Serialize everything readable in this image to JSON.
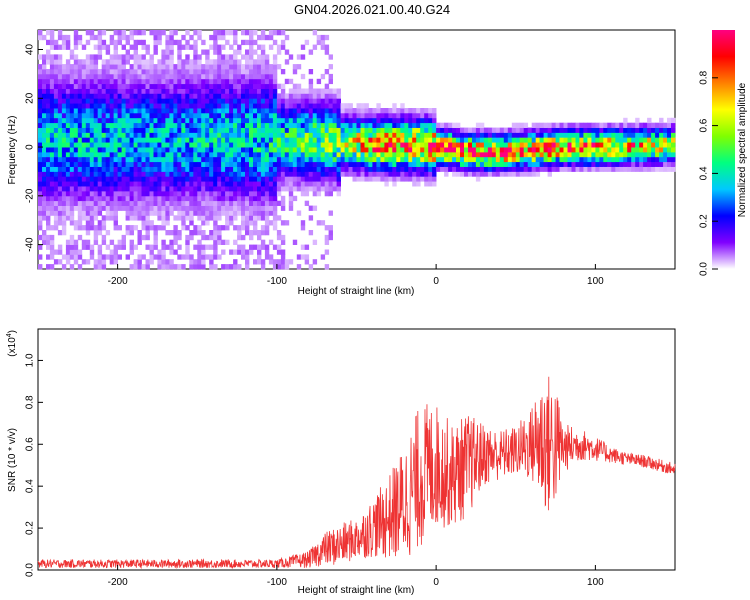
{
  "title": "GN04.2026.021.00.40.G24",
  "chart_data": [
    {
      "type": "heatmap",
      "xlabel": "Height of straight line (km)",
      "ylabel": "Frequency (Hz)",
      "xlim": [
        -250,
        150
      ],
      "ylim": [
        -50,
        48
      ],
      "x_ticks": [
        -200,
        -100,
        0,
        100
      ],
      "y_ticks": [
        -40,
        -20,
        0,
        20,
        40
      ],
      "colorbar": {
        "label": "Normalized spectral amplitude",
        "range": [
          0,
          1
        ],
        "ticks": [
          "0.0",
          "0.2",
          "0.4",
          "0.6",
          "0.8"
        ],
        "colors": [
          "#ffffff",
          "#8000ff",
          "#0000ff",
          "#00c8ff",
          "#00ff80",
          "#80ff00",
          "#ffff00",
          "#ff8000",
          "#ff0000",
          "#ff0080"
        ]
      },
      "ridge": {
        "x": [
          -250,
          -150,
          -100,
          -60,
          -40,
          -20,
          0,
          20,
          40,
          60,
          80,
          100,
          150
        ],
        "center_freq": [
          2,
          2,
          2,
          1,
          0,
          0,
          -1,
          -3,
          -3,
          -2,
          -1,
          -1,
          0
        ],
        "amplitude": [
          0.35,
          0.35,
          0.4,
          0.55,
          0.75,
          0.8,
          0.85,
          0.85,
          0.85,
          0.8,
          0.8,
          0.8,
          0.6
        ]
      }
    },
    {
      "type": "line",
      "xlabel": "Height of straight line (km)",
      "ylabel": "SNR (10 * v/v)",
      "scale_label": "(x10",
      "scale_exp": "4",
      "xlim": [
        -250,
        150
      ],
      "ylim": [
        0,
        1.15
      ],
      "x_ticks": [
        -200,
        -100,
        0,
        100
      ],
      "y_ticks": [
        "0.0",
        "0.2",
        "0.4",
        "0.6",
        "0.8",
        "1.0"
      ],
      "line_color": "#ee3333",
      "series": [
        {
          "x": [
            -250,
            -200,
            -150,
            -100,
            -80,
            -70,
            -60,
            -50,
            -40,
            -30,
            -20,
            -10,
            0,
            10,
            20,
            30,
            40,
            50,
            60,
            65,
            70,
            75,
            80,
            90,
            100,
            110,
            120,
            130,
            140,
            150
          ],
          "y": [
            0.03,
            0.03,
            0.03,
            0.03,
            0.05,
            0.1,
            0.12,
            0.15,
            0.2,
            0.25,
            0.32,
            0.45,
            0.5,
            0.45,
            0.5,
            0.55,
            0.55,
            0.57,
            0.6,
            0.62,
            0.6,
            0.6,
            0.58,
            0.6,
            0.58,
            0.55,
            0.53,
            0.52,
            0.5,
            0.48
          ],
          "spread": [
            0.02,
            0.02,
            0.02,
            0.02,
            0.04,
            0.08,
            0.1,
            0.1,
            0.14,
            0.2,
            0.28,
            0.35,
            0.3,
            0.25,
            0.25,
            0.15,
            0.12,
            0.12,
            0.18,
            0.3,
            0.35,
            0.3,
            0.12,
            0.08,
            0.06,
            0.04,
            0.03,
            0.03,
            0.03,
            0.03
          ]
        }
      ]
    }
  ]
}
